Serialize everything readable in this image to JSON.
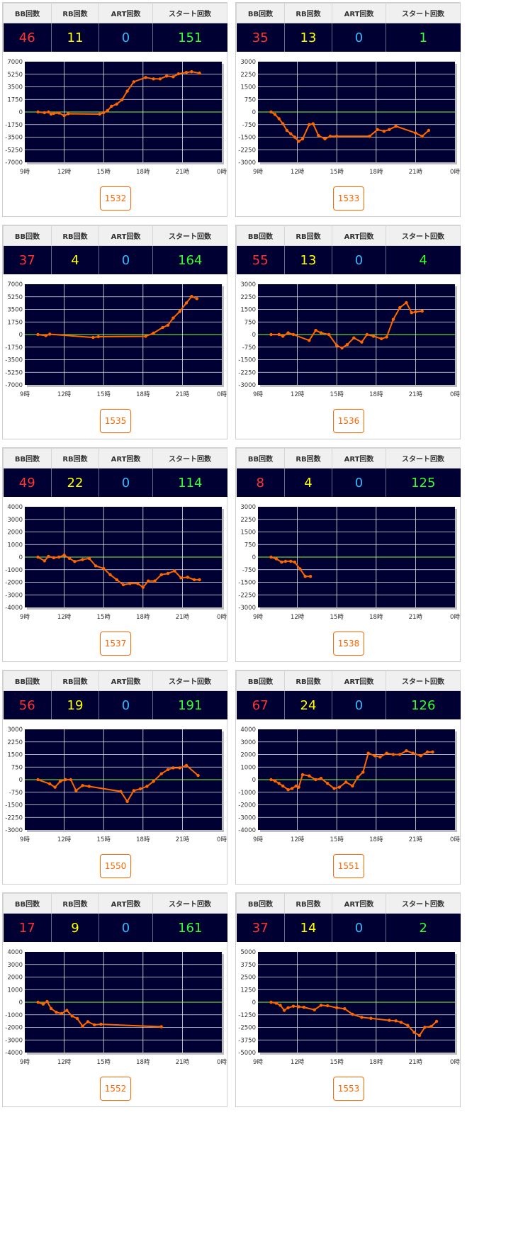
{
  "header_labels": {
    "bb": "BB回数",
    "rb": "RB回数",
    "art": "ART回数",
    "start": "スタート回数"
  },
  "colors": {
    "bb": "#ff3333",
    "rb": "#ffff00",
    "art": "#33bbff",
    "start": "#33ff33",
    "plot_bg": "#000033",
    "zero_line": "#66cc33",
    "series": "#ff6600"
  },
  "machines": [
    {
      "number": "1532",
      "bb": "46",
      "rb": "11",
      "art": "0",
      "start": "151"
    },
    {
      "number": "1533",
      "bb": "35",
      "rb": "13",
      "art": "0",
      "start": "1"
    },
    {
      "number": "1535",
      "bb": "37",
      "rb": "4",
      "art": "0",
      "start": "164"
    },
    {
      "number": "1536",
      "bb": "55",
      "rb": "13",
      "art": "0",
      "start": "4"
    },
    {
      "number": "1537",
      "bb": "49",
      "rb": "22",
      "art": "0",
      "start": "114"
    },
    {
      "number": "1538",
      "bb": "8",
      "rb": "4",
      "art": "0",
      "start": "125"
    },
    {
      "number": "1550",
      "bb": "56",
      "rb": "19",
      "art": "0",
      "start": "191"
    },
    {
      "number": "1551",
      "bb": "67",
      "rb": "24",
      "art": "0",
      "start": "126"
    },
    {
      "number": "1552",
      "bb": "17",
      "rb": "9",
      "art": "0",
      "start": "161"
    },
    {
      "number": "1553",
      "bb": "37",
      "rb": "14",
      "art": "0",
      "start": "2"
    }
  ],
  "chart_data": [
    {
      "type": "line",
      "machine": "1532",
      "x_ticks": [
        "9時",
        "12時",
        "15時",
        "18時",
        "21時",
        "0時"
      ],
      "x_range_hours": [
        9,
        24
      ],
      "y_ticks": [
        "7000",
        "5250",
        "3500",
        "1750",
        "0",
        "-1750",
        "-3500",
        "-5250",
        "-7000"
      ],
      "ylim": [
        -7000,
        7000
      ],
      "x": [
        10.0,
        10.5,
        10.8,
        11.0,
        11.2,
        11.6,
        12.0,
        12.3,
        14.7,
        15.0,
        15.3,
        15.6,
        16.0,
        16.4,
        16.8,
        17.3,
        18.2,
        18.8,
        19.3,
        19.8,
        20.3,
        20.7,
        21.3,
        21.7,
        22.3
      ],
      "y": [
        0,
        -100,
        0,
        -300,
        -200,
        -150,
        -500,
        -250,
        -300,
        -100,
        200,
        800,
        1100,
        1700,
        2900,
        4200,
        4800,
        4600,
        4600,
        5000,
        4900,
        5300,
        5500,
        5600,
        5400
      ]
    },
    {
      "type": "line",
      "machine": "1533",
      "x_ticks": [
        "9時",
        "12時",
        "15時",
        "18時",
        "21時",
        "0時"
      ],
      "x_range_hours": [
        9,
        24
      ],
      "y_ticks": [
        "3000",
        "2250",
        "1500",
        "750",
        "0",
        "-750",
        "-1500",
        "-2250",
        "-3000"
      ],
      "ylim": [
        -3000,
        3000
      ],
      "x": [
        10.0,
        10.3,
        10.6,
        10.9,
        11.2,
        11.5,
        11.8,
        12.1,
        12.4,
        12.9,
        13.2,
        13.6,
        14.1,
        14.5,
        15.0,
        17.5,
        18.1,
        18.6,
        19.0,
        19.5,
        21.0,
        21.5,
        22.0
      ],
      "y": [
        0,
        -150,
        -400,
        -700,
        -1100,
        -1300,
        -1500,
        -1750,
        -1600,
        -750,
        -700,
        -1400,
        -1600,
        -1450,
        -1450,
        -1450,
        -1050,
        -1150,
        -1050,
        -850,
        -1250,
        -1450,
        -1100
      ]
    },
    {
      "type": "line",
      "machine": "1535",
      "x_ticks": [
        "9時",
        "12時",
        "15時",
        "18時",
        "21時",
        "0時"
      ],
      "x_range_hours": [
        9,
        24
      ],
      "y_ticks": [
        "7000",
        "5250",
        "3500",
        "1750",
        "0",
        "-1750",
        "-3500",
        "-5250",
        "-7000"
      ],
      "ylim": [
        -7000,
        7000
      ],
      "x": [
        10.0,
        10.6,
        10.9,
        14.2,
        14.6,
        18.2,
        18.8,
        19.5,
        19.9,
        20.3,
        20.8,
        21.3,
        21.7,
        22.1
      ],
      "y": [
        0,
        -150,
        50,
        -400,
        -300,
        -250,
        200,
        1000,
        1300,
        2300,
        3200,
        4400,
        5300,
        5000
      ]
    },
    {
      "type": "line",
      "machine": "1536",
      "x_ticks": [
        "9時",
        "12時",
        "15時",
        "18時",
        "21時",
        "0時"
      ],
      "x_range_hours": [
        9,
        24
      ],
      "y_ticks": [
        "3000",
        "2250",
        "1500",
        "750",
        "0",
        "-750",
        "-1500",
        "-2250",
        "-3000"
      ],
      "ylim": [
        -3000,
        3000
      ],
      "x": [
        10.0,
        10.6,
        10.9,
        11.3,
        11.7,
        12.9,
        13.4,
        13.8,
        14.4,
        15.0,
        15.4,
        15.8,
        16.3,
        16.9,
        17.3,
        17.8,
        18.4,
        18.8,
        19.3,
        19.8,
        20.3,
        20.7,
        21.0,
        21.5
      ],
      "y": [
        0,
        0,
        -100,
        100,
        0,
        -350,
        250,
        100,
        0,
        -650,
        -800,
        -600,
        -200,
        -450,
        0,
        -100,
        -250,
        -150,
        900,
        1600,
        1900,
        1300,
        1350,
        1400
      ]
    },
    {
      "type": "line",
      "machine": "1537",
      "x_ticks": [
        "9時",
        "12時",
        "15時",
        "18時",
        "21時",
        "0時"
      ],
      "x_range_hours": [
        9,
        24
      ],
      "y_ticks": [
        "4000",
        "3000",
        "2000",
        "1000",
        "0",
        "-1000",
        "-2000",
        "-3000",
        "-4000"
      ],
      "ylim": [
        -4000,
        4000
      ],
      "x": [
        10.0,
        10.5,
        10.8,
        11.2,
        11.6,
        12.0,
        12.4,
        12.8,
        13.4,
        13.9,
        14.4,
        15.0,
        15.5,
        16.0,
        16.5,
        17.0,
        17.6,
        18.0,
        18.4,
        18.9,
        19.4,
        19.9,
        20.4,
        20.9,
        21.4,
        21.9,
        22.3
      ],
      "y": [
        0,
        -300,
        50,
        -50,
        0,
        150,
        -100,
        -350,
        -200,
        -100,
        -700,
        -900,
        -1400,
        -1800,
        -2200,
        -2100,
        -2100,
        -2400,
        -1900,
        -1900,
        -1400,
        -1300,
        -1100,
        -1650,
        -1600,
        -1800,
        -1800
      ]
    },
    {
      "type": "line",
      "machine": "1538",
      "x_ticks": [
        "9時",
        "12時",
        "15時",
        "18時",
        "21時",
        "0時"
      ],
      "x_range_hours": [
        9,
        24
      ],
      "y_ticks": [
        "3000",
        "2250",
        "1500",
        "750",
        "0",
        "-750",
        "-1500",
        "-2250",
        "-3000"
      ],
      "ylim": [
        -3000,
        3000
      ],
      "x": [
        10.0,
        10.4,
        10.8,
        11.1,
        11.5,
        11.8,
        12.2,
        12.6,
        13.0
      ],
      "y": [
        0,
        -100,
        -300,
        -250,
        -250,
        -300,
        -700,
        -1150,
        -1150
      ]
    },
    {
      "type": "line",
      "machine": "1550",
      "x_ticks": [
        "9時",
        "12時",
        "15時",
        "18時",
        "21時",
        "0時"
      ],
      "x_range_hours": [
        9,
        24
      ],
      "y_ticks": [
        "3000",
        "2250",
        "1500",
        "750",
        "0",
        "-750",
        "-1500",
        "-2250",
        "-3000"
      ],
      "ylim": [
        -3000,
        3000
      ],
      "x": [
        10.0,
        10.9,
        11.3,
        11.7,
        12.1,
        12.5,
        12.9,
        13.4,
        13.9,
        16.3,
        16.8,
        17.3,
        17.8,
        18.3,
        18.8,
        19.4,
        19.9,
        20.3,
        20.8,
        21.3,
        22.2
      ],
      "y": [
        0,
        -250,
        -450,
        -100,
        0,
        0,
        -650,
        -350,
        -400,
        -700,
        -1300,
        -650,
        -550,
        -400,
        -100,
        350,
        600,
        700,
        700,
        850,
        250
      ]
    },
    {
      "type": "line",
      "machine": "1551",
      "x_ticks": [
        "9時",
        "12時",
        "15時",
        "18時",
        "21時",
        "0時"
      ],
      "x_range_hours": [
        9,
        24
      ],
      "y_ticks": [
        "4000",
        "3000",
        "2000",
        "1000",
        "0",
        "-1000",
        "-2000",
        "-3000",
        "-4000"
      ],
      "ylim": [
        -4000,
        4000
      ],
      "x": [
        10.0,
        10.3,
        10.6,
        10.9,
        11.3,
        11.6,
        11.9,
        12.1,
        12.4,
        12.9,
        13.4,
        13.8,
        14.3,
        14.8,
        15.2,
        15.7,
        16.2,
        16.6,
        17.0,
        17.4,
        17.9,
        18.3,
        18.8,
        19.3,
        19.8,
        20.3,
        20.8,
        21.4,
        21.9,
        22.3
      ],
      "y": [
        0,
        -100,
        -300,
        -500,
        -800,
        -700,
        -500,
        -600,
        400,
        300,
        0,
        100,
        -300,
        -700,
        -600,
        -200,
        -500,
        200,
        600,
        2100,
        1900,
        1800,
        2100,
        2000,
        2000,
        2300,
        2100,
        1900,
        2200,
        2200
      ]
    },
    {
      "type": "line",
      "machine": "1552",
      "x_ticks": [
        "9時",
        "12時",
        "15時",
        "18時",
        "21時",
        "0時"
      ],
      "x_range_hours": [
        9,
        24
      ],
      "y_ticks": [
        "4000",
        "3000",
        "2000",
        "1000",
        "0",
        "-1000",
        "-2000",
        "-3000",
        "-4000"
      ],
      "ylim": [
        -4000,
        4000
      ],
      "x": [
        10.0,
        10.4,
        10.7,
        11.0,
        11.4,
        11.8,
        12.2,
        12.6,
        13.0,
        13.4,
        13.8,
        14.3,
        14.8,
        19.4
      ],
      "y": [
        0,
        -150,
        50,
        -500,
        -800,
        -900,
        -650,
        -1100,
        -1300,
        -1900,
        -1550,
        -1800,
        -1750,
        -1950
      ]
    },
    {
      "type": "line",
      "machine": "1553",
      "x_ticks": [
        "9時",
        "12時",
        "15時",
        "18時",
        "21時",
        "0時"
      ],
      "x_range_hours": [
        9,
        24
      ],
      "y_ticks": [
        "5000",
        "3750",
        "2500",
        "1250",
        "0",
        "-1250",
        "-2500",
        "-3750",
        "-5000"
      ],
      "ylim": [
        -5000,
        5000
      ],
      "x": [
        10.0,
        10.4,
        10.7,
        11.0,
        11.3,
        11.7,
        12.1,
        12.5,
        13.3,
        13.8,
        14.3,
        15.0,
        15.6,
        16.2,
        16.9,
        17.6,
        19.0,
        19.5,
        19.9,
        20.4,
        20.9,
        21.3,
        21.7,
        22.2,
        22.6
      ],
      "y": [
        0,
        -100,
        -300,
        -800,
        -550,
        -400,
        -450,
        -500,
        -750,
        -300,
        -350,
        -550,
        -650,
        -1200,
        -1500,
        -1600,
        -1800,
        -1850,
        -2000,
        -2300,
        -3000,
        -3300,
        -2500,
        -2400,
        -1900
      ]
    }
  ]
}
